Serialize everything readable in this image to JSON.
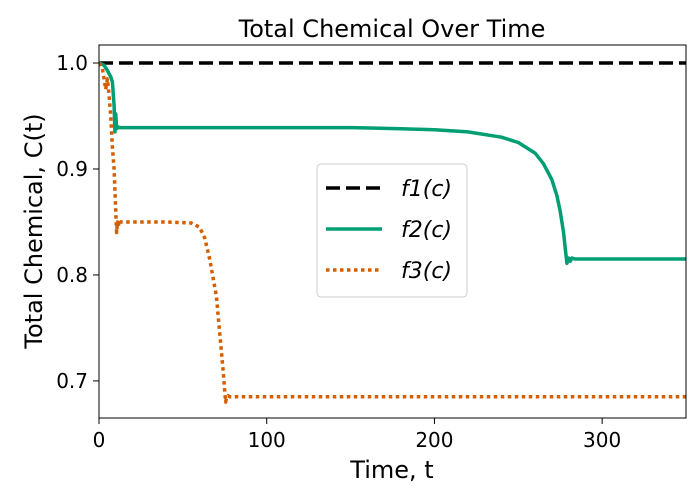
{
  "chart_data": {
    "type": "line",
    "title": "Total Chemical Over Time",
    "xlabel": "Time, t",
    "ylabel": "Total Chemical, C(t)",
    "xlim": [
      0,
      350
    ],
    "ylim": [
      0.665,
      1.017
    ],
    "xticks": [
      0,
      100,
      200,
      300
    ],
    "xtick_labels": [
      "0",
      "100",
      "200",
      "300"
    ],
    "yticks": [
      0.7,
      0.8,
      0.9,
      1.0
    ],
    "ytick_labels": [
      "0.7",
      "0.8",
      "0.9",
      "1.0"
    ],
    "grid": false,
    "legend_position": "center",
    "series": [
      {
        "name": "f1(c)",
        "color": "#000000",
        "style": "dashed",
        "x": [
          0,
          350
        ],
        "y": [
          1.0,
          1.0
        ]
      },
      {
        "name": "f2(c)",
        "color": "#009E73",
        "style": "solid",
        "x": [
          0,
          3,
          5,
          7,
          8,
          9,
          9.5,
          10,
          10.5,
          11,
          12,
          14,
          50,
          100,
          150,
          180,
          200,
          220,
          240,
          250,
          260,
          265,
          270,
          273,
          275,
          277,
          278,
          279,
          280,
          281,
          282,
          284,
          290,
          320,
          350
        ],
        "y": [
          1.0,
          0.998,
          0.993,
          0.987,
          0.982,
          0.96,
          0.935,
          0.952,
          0.938,
          0.94,
          0.939,
          0.939,
          0.939,
          0.939,
          0.939,
          0.938,
          0.937,
          0.935,
          0.93,
          0.925,
          0.915,
          0.905,
          0.89,
          0.875,
          0.86,
          0.84,
          0.825,
          0.811,
          0.816,
          0.813,
          0.816,
          0.815,
          0.815,
          0.815,
          0.815
        ]
      },
      {
        "name": "f3(c)",
        "color": "#D55E00",
        "style": "dotted",
        "x": [
          0,
          2,
          3,
          4,
          5,
          6,
          7,
          8,
          9,
          10,
          10.5,
          11,
          11.5,
          12,
          13,
          20,
          40,
          55,
          60,
          63,
          66,
          70,
          72,
          74,
          75,
          75.5,
          76,
          77,
          78,
          80,
          100,
          200,
          300,
          350
        ],
        "y": [
          1.0,
          0.995,
          0.985,
          0.975,
          0.985,
          0.97,
          0.95,
          0.92,
          0.9,
          0.86,
          0.84,
          0.85,
          0.845,
          0.852,
          0.85,
          0.85,
          0.85,
          0.849,
          0.845,
          0.835,
          0.815,
          0.78,
          0.745,
          0.71,
          0.69,
          0.68,
          0.684,
          0.686,
          0.685,
          0.685,
          0.685,
          0.685,
          0.685,
          0.685
        ]
      }
    ]
  }
}
